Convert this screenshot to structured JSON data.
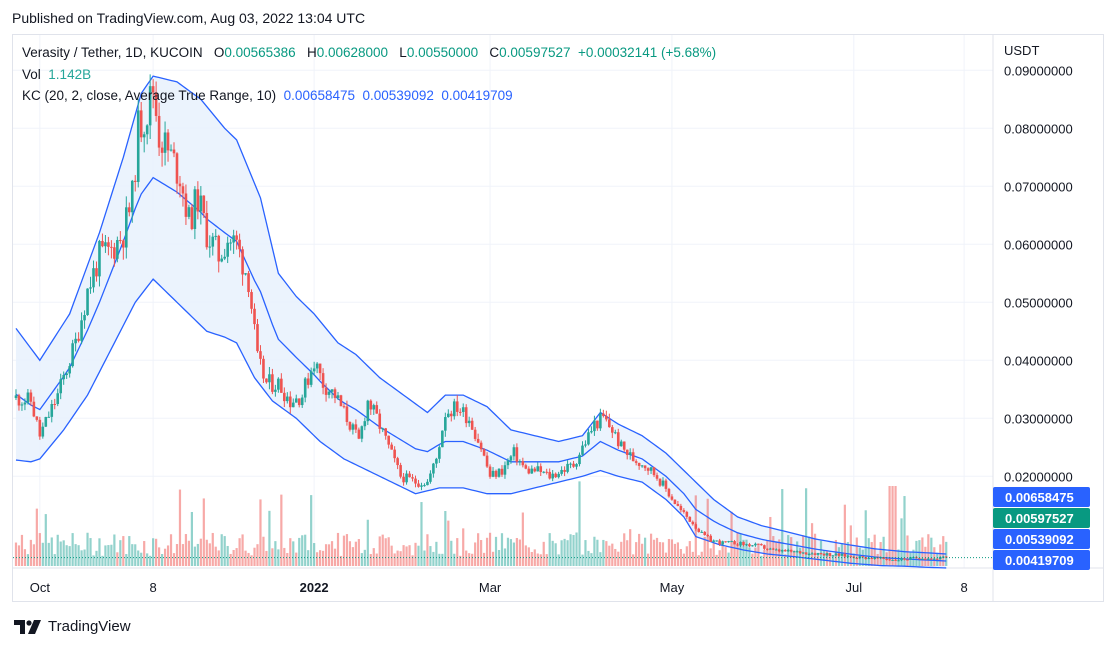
{
  "published": "Published on TradingView.com, Aug 03, 2022 13:04 UTC",
  "legend": {
    "symbol": "Verasity / Tether, 1D, KUCOIN",
    "o_label": "O",
    "o": "0.00565386",
    "h_label": "H",
    "h": "0.00628000",
    "l_label": "L",
    "l": "0.00550000",
    "c_label": "C",
    "c": "0.00597527",
    "change": "+0.00032141 (+5.68%)",
    "vol_label": "Vol",
    "vol": "1.142B",
    "kc_label": "KC (20, 2, close, Average True Range, 10)",
    "kc_upper": "0.00658475",
    "kc_mid": "0.00539092",
    "kc_lower": "0.00419709"
  },
  "footer": {
    "brand": "TradingView",
    "logo_icon": "tradingview-logo-icon"
  },
  "colors": {
    "up": "#26a69a",
    "down": "#ef5350",
    "band": "#2962ff",
    "band_fill": "#e8f1fd",
    "price_tag": "#089981"
  },
  "chart_data": {
    "type": "candlestick",
    "currency": "USDT",
    "x_ticks": [
      "Oct",
      "8",
      "2022",
      "Mar",
      "May",
      "Jul",
      "8"
    ],
    "x_tick_days": [
      0,
      38,
      92,
      151,
      212,
      273,
      310
    ],
    "y_ticks": [
      "0.09000000",
      "0.08000000",
      "0.07000000",
      "0.06000000",
      "0.05000000",
      "0.04000000",
      "0.03000000",
      "0.02000000"
    ],
    "ylim": [
      0.0035,
      0.0935
    ],
    "last_price": "0.00597527",
    "tags": [
      {
        "label": "0.00658475",
        "value": 0.00658475,
        "kind": "upper"
      },
      {
        "label": "0.00597527",
        "value": 0.00597527,
        "kind": "price"
      },
      {
        "label": "0.00539092",
        "value": 0.00539092,
        "kind": "mid"
      },
      {
        "label": "0.00419709",
        "value": 0.00419709,
        "kind": "lower"
      }
    ],
    "close_path": [
      [
        -8,
        0.0335
      ],
      [
        -3,
        0.033
      ],
      [
        0,
        0.027
      ],
      [
        6,
        0.034
      ],
      [
        12,
        0.043
      ],
      [
        16,
        0.052
      ],
      [
        20,
        0.058
      ],
      [
        24,
        0.059
      ],
      [
        28,
        0.062
      ],
      [
        31,
        0.068
      ],
      [
        33,
        0.08
      ],
      [
        36,
        0.083
      ],
      [
        38,
        0.087
      ],
      [
        40,
        0.079
      ],
      [
        44,
        0.075
      ],
      [
        47,
        0.072
      ],
      [
        50,
        0.064
      ],
      [
        53,
        0.068
      ],
      [
        56,
        0.062
      ],
      [
        60,
        0.058
      ],
      [
        63,
        0.061
      ],
      [
        66,
        0.06
      ],
      [
        70,
        0.054
      ],
      [
        73,
        0.04
      ],
      [
        76,
        0.036
      ],
      [
        80,
        0.036
      ],
      [
        84,
        0.033
      ],
      [
        88,
        0.034
      ],
      [
        92,
        0.04
      ],
      [
        95,
        0.036
      ],
      [
        99,
        0.034
      ],
      [
        103,
        0.03
      ],
      [
        107,
        0.026
      ],
      [
        110,
        0.033
      ],
      [
        113,
        0.03
      ],
      [
        117,
        0.025
      ],
      [
        121,
        0.02
      ],
      [
        126,
        0.019
      ],
      [
        130,
        0.019
      ],
      [
        133,
        0.023
      ],
      [
        136,
        0.031
      ],
      [
        140,
        0.032
      ],
      [
        144,
        0.03
      ],
      [
        148,
        0.025
      ],
      [
        151,
        0.02
      ],
      [
        155,
        0.021
      ],
      [
        159,
        0.024
      ],
      [
        163,
        0.021
      ],
      [
        167,
        0.021
      ],
      [
        171,
        0.02
      ],
      [
        175,
        0.021
      ],
      [
        179,
        0.022
      ],
      [
        183,
        0.026
      ],
      [
        186,
        0.029
      ],
      [
        189,
        0.03
      ],
      [
        192,
        0.028
      ],
      [
        195,
        0.025
      ],
      [
        199,
        0.023
      ],
      [
        203,
        0.022
      ],
      [
        207,
        0.02
      ],
      [
        211,
        0.017
      ],
      [
        215,
        0.014
      ],
      [
        219,
        0.012
      ],
      [
        222,
        0.01
      ],
      [
        225,
        0.009
      ],
      [
        229,
        0.0085
      ],
      [
        233,
        0.0085
      ],
      [
        237,
        0.0082
      ],
      [
        241,
        0.008
      ],
      [
        246,
        0.0072
      ],
      [
        252,
        0.007
      ],
      [
        258,
        0.0068
      ],
      [
        264,
        0.0066
      ],
      [
        270,
        0.0063
      ],
      [
        276,
        0.006
      ],
      [
        282,
        0.0058
      ],
      [
        287,
        0.0056
      ],
      [
        291,
        0.0058
      ],
      [
        296,
        0.006
      ],
      [
        300,
        0.0058
      ],
      [
        304,
        0.006
      ]
    ],
    "band_upper": [
      [
        -8,
        0.0455
      ],
      [
        0,
        0.04
      ],
      [
        10,
        0.048
      ],
      [
        20,
        0.062
      ],
      [
        28,
        0.075
      ],
      [
        34,
        0.086
      ],
      [
        38,
        0.089
      ],
      [
        46,
        0.088
      ],
      [
        54,
        0.085
      ],
      [
        62,
        0.08
      ],
      [
        66,
        0.078
      ],
      [
        70,
        0.073
      ],
      [
        74,
        0.068
      ],
      [
        80,
        0.055
      ],
      [
        86,
        0.051
      ],
      [
        92,
        0.048
      ],
      [
        100,
        0.043
      ],
      [
        106,
        0.041
      ],
      [
        114,
        0.037
      ],
      [
        122,
        0.034
      ],
      [
        130,
        0.031
      ],
      [
        136,
        0.034
      ],
      [
        142,
        0.034
      ],
      [
        150,
        0.032
      ],
      [
        158,
        0.028
      ],
      [
        166,
        0.027
      ],
      [
        174,
        0.026
      ],
      [
        182,
        0.027
      ],
      [
        188,
        0.031
      ],
      [
        194,
        0.029
      ],
      [
        202,
        0.027
      ],
      [
        210,
        0.024
      ],
      [
        218,
        0.02
      ],
      [
        226,
        0.016
      ],
      [
        234,
        0.013
      ],
      [
        242,
        0.0115
      ],
      [
        250,
        0.0105
      ],
      [
        260,
        0.0092
      ],
      [
        270,
        0.0083
      ],
      [
        280,
        0.0075
      ],
      [
        290,
        0.007
      ],
      [
        298,
        0.0068
      ],
      [
        304,
        0.0066
      ]
    ],
    "band_lower": [
      [
        -8,
        0.0228
      ],
      [
        -3,
        0.0225
      ],
      [
        0,
        0.023
      ],
      [
        8,
        0.028
      ],
      [
        16,
        0.034
      ],
      [
        24,
        0.042
      ],
      [
        32,
        0.05
      ],
      [
        38,
        0.054
      ],
      [
        44,
        0.051
      ],
      [
        50,
        0.048
      ],
      [
        56,
        0.045
      ],
      [
        62,
        0.044
      ],
      [
        66,
        0.043
      ],
      [
        72,
        0.037
      ],
      [
        78,
        0.033
      ],
      [
        86,
        0.03
      ],
      [
        94,
        0.026
      ],
      [
        102,
        0.023
      ],
      [
        110,
        0.021
      ],
      [
        118,
        0.019
      ],
      [
        126,
        0.017
      ],
      [
        134,
        0.018
      ],
      [
        142,
        0.018
      ],
      [
        150,
        0.017
      ],
      [
        158,
        0.017
      ],
      [
        166,
        0.018
      ],
      [
        174,
        0.019
      ],
      [
        182,
        0.02
      ],
      [
        188,
        0.021
      ],
      [
        194,
        0.02
      ],
      [
        202,
        0.019
      ],
      [
        210,
        0.016
      ],
      [
        216,
        0.013
      ],
      [
        220,
        0.0096
      ],
      [
        228,
        0.0082
      ],
      [
        236,
        0.0073
      ],
      [
        244,
        0.0066
      ],
      [
        252,
        0.0062
      ],
      [
        262,
        0.0056
      ],
      [
        272,
        0.005
      ],
      [
        282,
        0.0046
      ],
      [
        290,
        0.0045
      ],
      [
        298,
        0.0043
      ],
      [
        304,
        0.00419709
      ]
    ]
  }
}
